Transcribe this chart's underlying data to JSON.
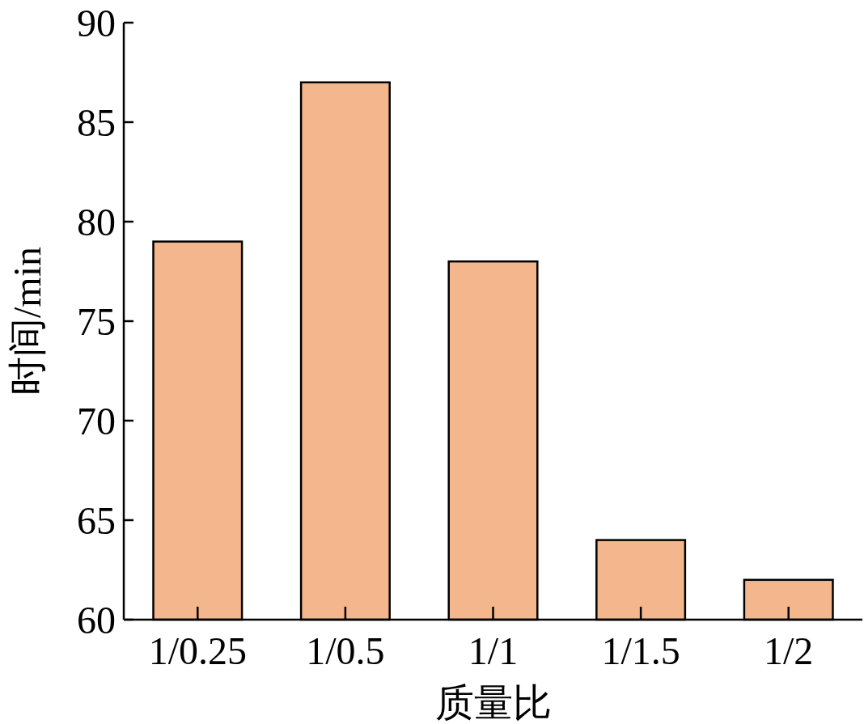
{
  "chart_data": {
    "type": "bar",
    "xlabel": "质量比",
    "ylabel": "时间/min",
    "categories": [
      "1/0.25",
      "1/0.5",
      "1/1",
      "1/1.5",
      "1/2"
    ],
    "values": [
      79,
      87,
      78,
      64,
      62
    ],
    "color": "#f4b68c",
    "ylim": [
      60,
      90
    ],
    "yticks": [
      60,
      65,
      70,
      75,
      80,
      85,
      90
    ],
    "grid": false
  }
}
